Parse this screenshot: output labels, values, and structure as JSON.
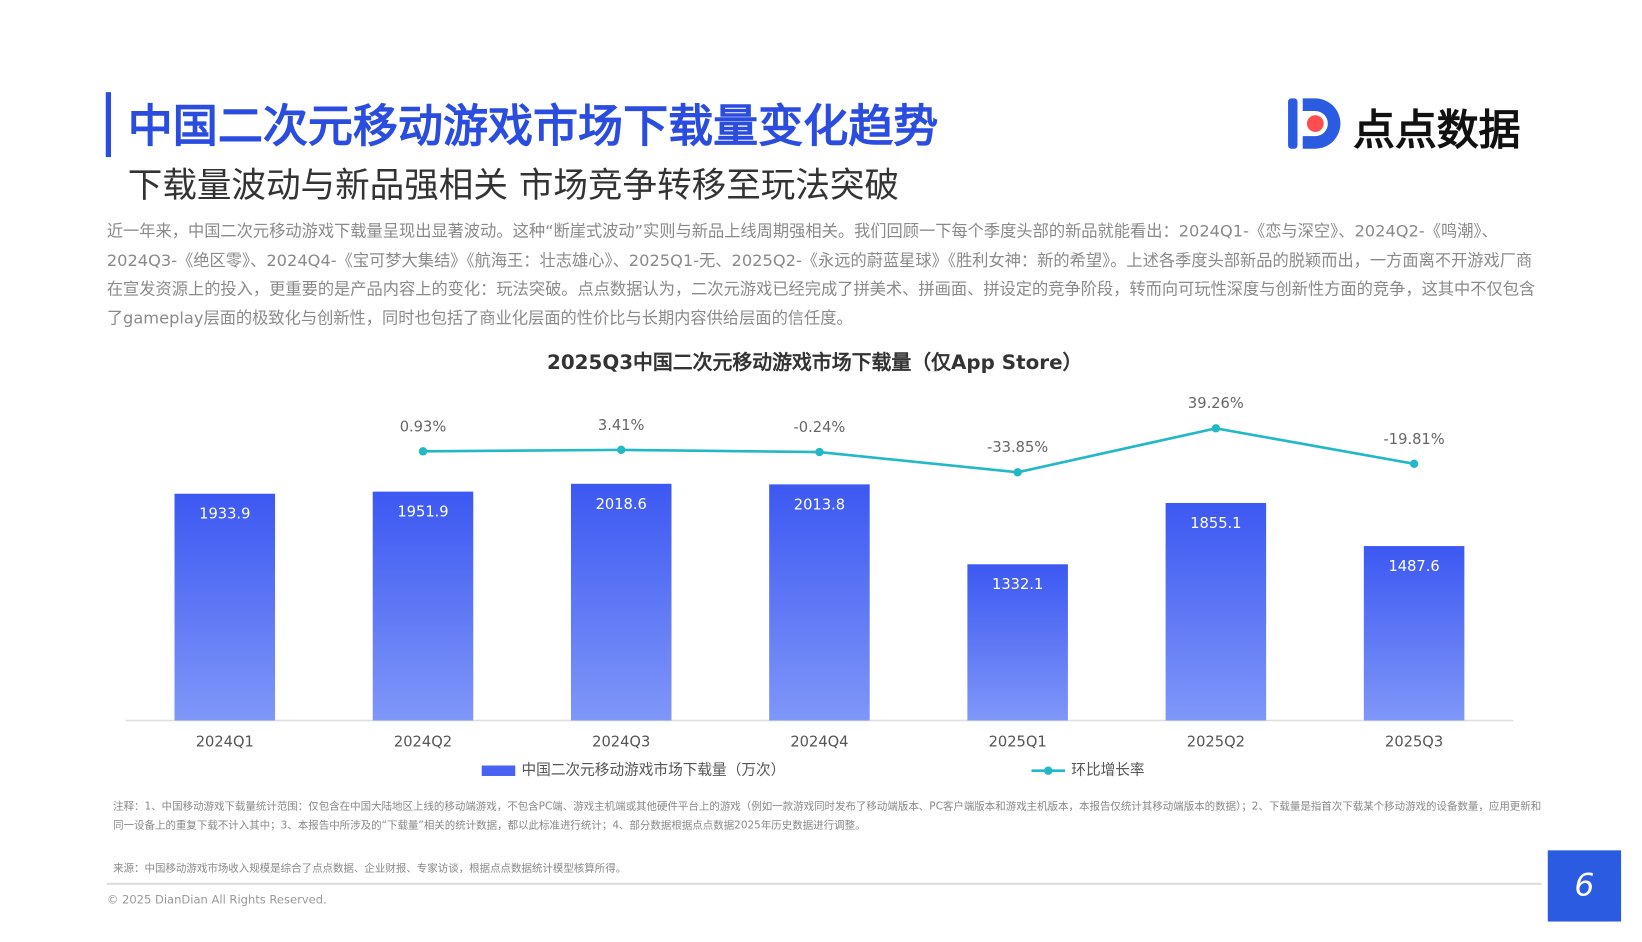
{
  "header": {
    "title": "中国二次元移动游戏市场下载量变化趋势",
    "subtitle": "下载量波动与新品强相关 市场竞争转移至玩法突破",
    "logo": "点点数据"
  },
  "paragraph": "近一年来，中国二次元移动游戏下载量呈现出显著波动。这种“断崖式波动”实则与新品上线周期强相关。我们回顾一下每个季度头部的新品就能看出：2024Q1-《恋与深空》、2024Q2-《鸣潮》、2024Q3-《绝区零》、2024Q4-《宝可梦大集结》《航海王：壮志雄心》、2025Q1-无、2025Q2-《永远的蔚蓝星球》《胜利女神：新的希望》。上述各季度头部新品的脱颖而出，一方面离不开游戏厂商在宣发资源上的投入，更重要的是产品内容上的变化：玩法突破。点点数据认为，二次元游戏已经完成了拼美术、拼画面、拼设定的竞争阶段，转而向可玩性深度与创新性方面的竞争，这其中不仅包含了gameplay层面的极致化与创新性，同时也包括了商业化层面的性价比与长期内容供给层面的信任度。",
  "chart_data": {
    "type": "bar",
    "title": "2025Q3中国二次元移动游戏市场下载量（仅App Store）",
    "categories": [
      "2024Q1",
      "2024Q2",
      "2024Q3",
      "2024Q4",
      "2025Q1",
      "2025Q2",
      "2025Q3"
    ],
    "series": [
      {
        "name": "中国二次元移动游戏市场下载量（万次）",
        "type": "bar",
        "color": "#4862f2",
        "values": [
          1933.9,
          1951.9,
          2018.6,
          2013.8,
          1332.1,
          1855.1,
          1487.6
        ]
      },
      {
        "name": "环比增长率",
        "type": "line",
        "axis": "y2",
        "color": "#22b8c6",
        "values": [
          null,
          0.93,
          3.41,
          -0.24,
          -33.85,
          39.26,
          -19.81
        ],
        "value_labels": [
          null,
          "0.93%",
          "3.41%",
          "-0.24%",
          "-33.85%",
          "39.26%",
          "-19.81%"
        ]
      }
    ]
  },
  "notes": "注释：1、中国移动游戏下载量统计范围：仅包含在中国大陆地区上线的移动端游戏，不包含PC端、游戏主机端或其他硬件平台上的游戏（例如一款游戏同时发布了移动端版本、PC客户端版本和游戏主机版本，本报告仅统计其移动端版本的数据）；2、下载量是指首次下载某个移动游戏的设备数量，应用更新和同一设备上的重复下载不计入其中；3、本报告中所涉及的“下载量”相关的统计数据，都以此标准进行统计；4、部分数据根据点点数据2025年历史数据进行调整。",
  "source": "来源：中国移动游戏市场收入规模是综合了点点数据、企业财报、专家访谈，根据点点数据统计模型核算所得。",
  "copyright": "© 2025 DianDian All Rights Reserved.",
  "page_number": "6"
}
